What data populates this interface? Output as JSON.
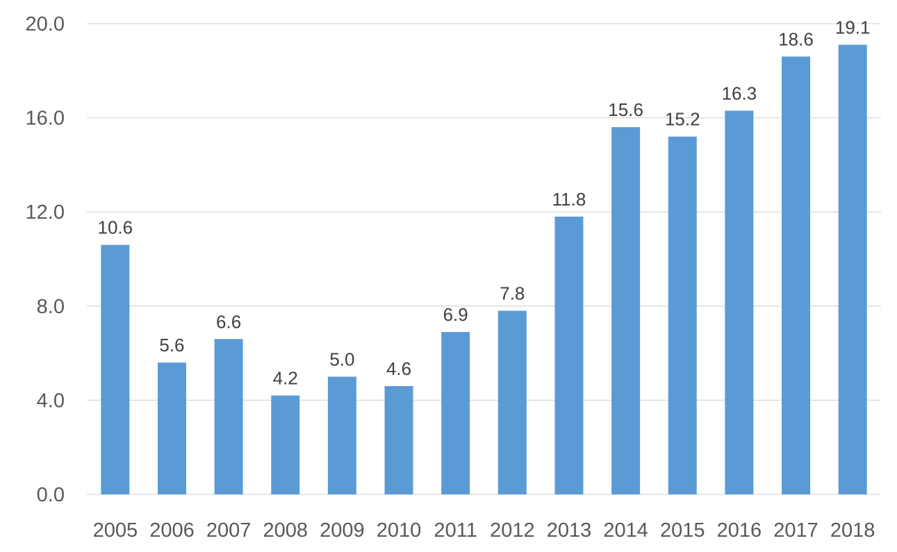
{
  "chart_data": {
    "type": "bar",
    "title": "",
    "xlabel": "",
    "ylabel": "",
    "categories": [
      "2005",
      "2006",
      "2007",
      "2008",
      "2009",
      "2010",
      "2011",
      "2012",
      "2013",
      "2014",
      "2015",
      "2016",
      "2017",
      "2018"
    ],
    "series": [
      {
        "values": [
          10.6,
          5.6,
          6.6,
          4.2,
          5.0,
          4.6,
          6.9,
          7.8,
          11.8,
          15.6,
          15.2,
          16.3,
          18.6,
          19.1
        ],
        "data_labels": [
          "10.6",
          "5.6",
          "6.6",
          "4.2",
          "5.0",
          "4.6",
          "6.9",
          "7.8",
          "11.8",
          "15.6",
          "15.2",
          "16.3",
          "18.6",
          "19.1"
        ],
        "color": "#5b9bd5"
      }
    ],
    "ylim": [
      0,
      20
    ],
    "yticks": [
      0,
      4,
      8,
      12,
      16,
      20
    ],
    "ytick_labels": [
      "0.0",
      "4.0",
      "8.0",
      "12.0",
      "16.0",
      "20.0"
    ],
    "grid": true,
    "gridline_color": "#d9d9d9",
    "legend": "none"
  }
}
